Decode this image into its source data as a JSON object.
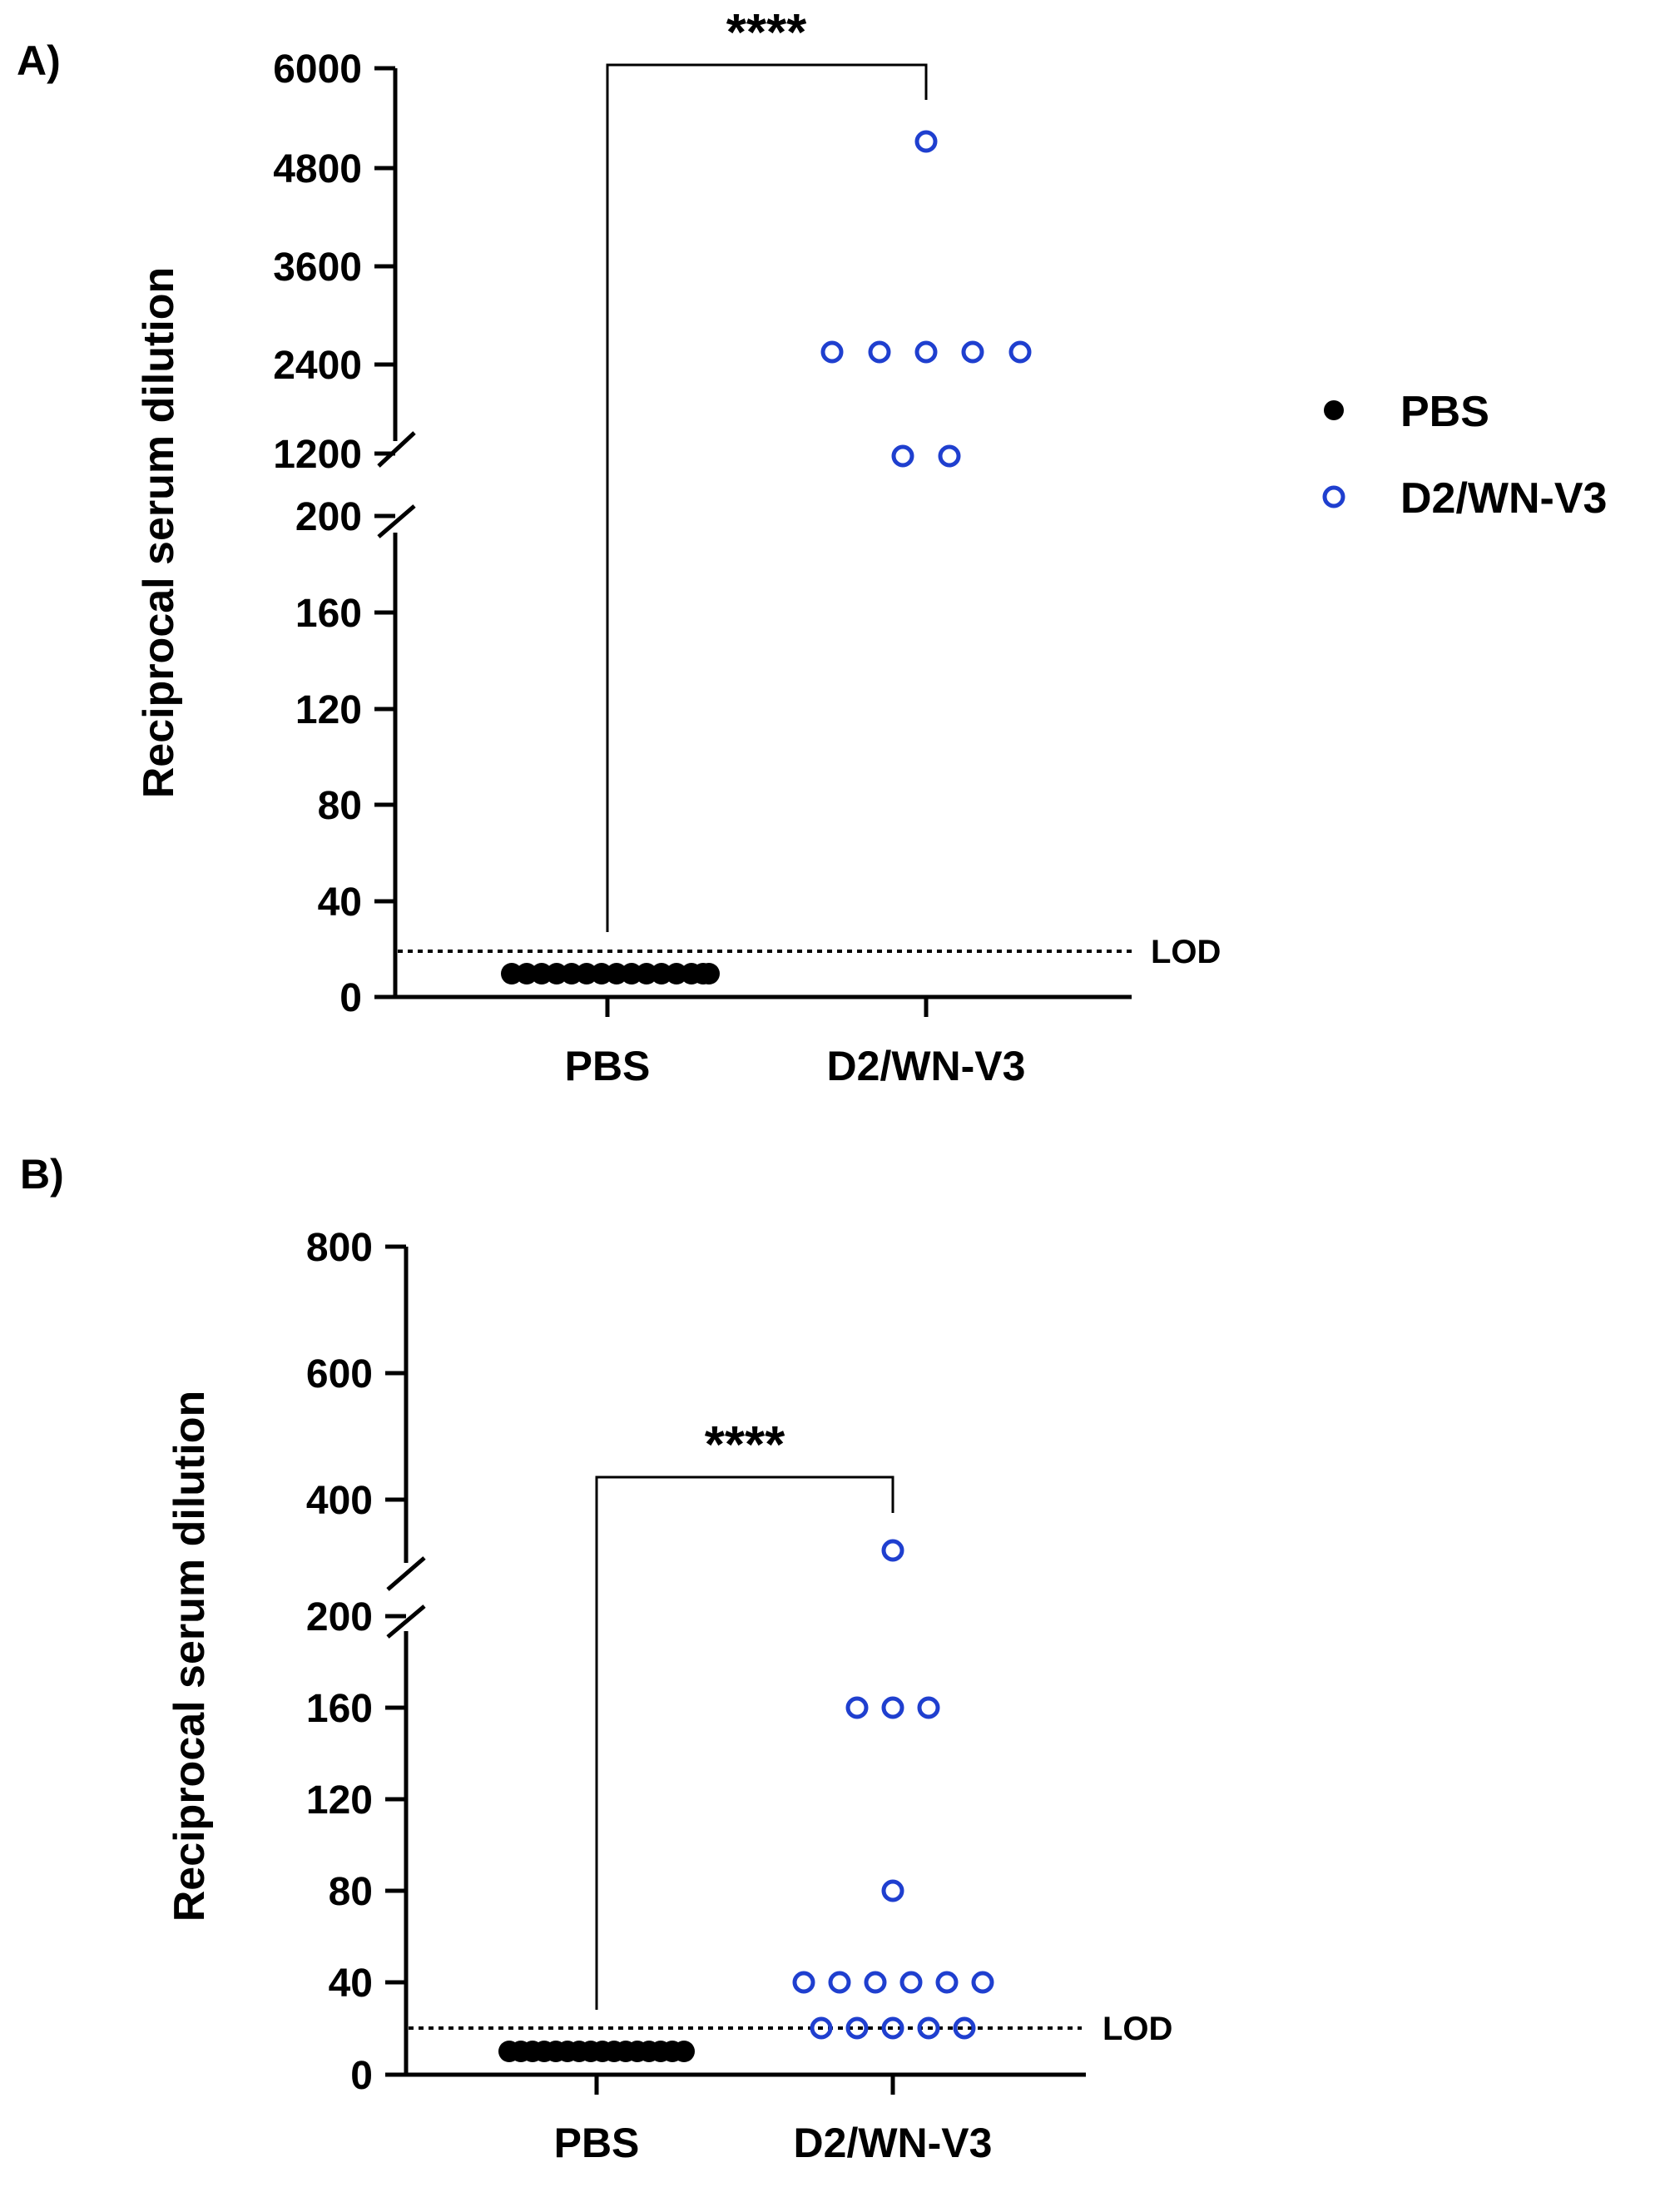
{
  "legend": {
    "pbs": {
      "label": "PBS",
      "color": "#000000",
      "marker": "filled-circle"
    },
    "d2": {
      "label": "D2/WN-V3",
      "color": "#1f3fcf",
      "marker": "open-circle"
    }
  },
  "chart_data": [
    {
      "panel_label": "A)",
      "type": "scatter",
      "ylabel": "Reciprocal serum dilution",
      "categories": [
        "PBS",
        "D2/WN-V3"
      ],
      "y_ticks": [
        "0",
        "40",
        "80",
        "120",
        "160",
        "200",
        "1200",
        "2400",
        "3600",
        "4800",
        "6000"
      ],
      "axis_break": {
        "lower_range": [
          0,
          200
        ],
        "upper_range": [
          1200,
          6000
        ]
      },
      "lod": {
        "label": "LOD",
        "value": 20
      },
      "significance": {
        "label": "****",
        "between": [
          "PBS",
          "D2/WN-V3"
        ]
      },
      "series": [
        {
          "name": "PBS",
          "values": [
            10,
            10,
            10,
            10,
            10,
            10,
            10,
            10,
            10,
            10,
            10,
            10,
            10,
            10,
            10
          ]
        },
        {
          "name": "D2/WN-V3",
          "values": [
            5120,
            2560,
            2560,
            2560,
            2560,
            2560,
            1280,
            1280
          ]
        }
      ]
    },
    {
      "panel_label": "B)",
      "type": "scatter",
      "ylabel": "Reciprocal serum dilution",
      "categories": [
        "PBS",
        "D2/WN-V3"
      ],
      "y_ticks": [
        "0",
        "40",
        "80",
        "120",
        "160",
        "200",
        "400",
        "600",
        "800"
      ],
      "axis_break": {
        "lower_range": [
          0,
          200
        ],
        "upper_range": [
          200,
          800
        ]
      },
      "lod": {
        "label": "LOD",
        "value": 20
      },
      "significance": {
        "label": "****",
        "between": [
          "PBS",
          "D2/WN-V3"
        ]
      },
      "series": [
        {
          "name": "PBS",
          "values": [
            10,
            10,
            10,
            10,
            10,
            10,
            10,
            10,
            10,
            10,
            10,
            10,
            10,
            10,
            10,
            10
          ]
        },
        {
          "name": "D2/WN-V3",
          "values": [
            320,
            160,
            160,
            160,
            80,
            40,
            40,
            40,
            40,
            40,
            40,
            20,
            20,
            20,
            20,
            20
          ]
        }
      ]
    }
  ]
}
